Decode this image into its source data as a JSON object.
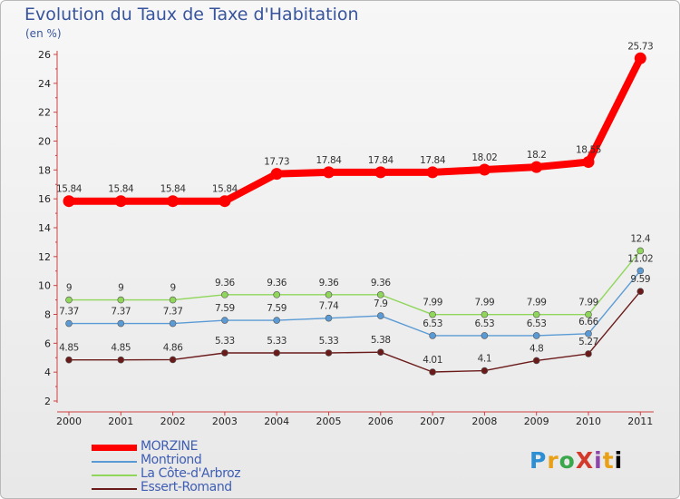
{
  "title": "Evolution du Taux de Taxe d'Habitation",
  "unit_label": "(en %)",
  "logo_text": "ProXiti",
  "chart_data": {
    "type": "line",
    "title": "Evolution du Taux de Taxe d'Habitation",
    "ylabel": "(en %)",
    "xlabel": "",
    "ylim": [
      2,
      26
    ],
    "yticks": [
      2,
      4,
      6,
      8,
      10,
      12,
      14,
      16,
      18,
      20,
      22,
      24,
      26
    ],
    "grid": false,
    "legend_position": "bottom-left",
    "categories": [
      "2000",
      "2001",
      "2002",
      "2003",
      "2004",
      "2005",
      "2006",
      "2007",
      "2008",
      "2009",
      "2010",
      "2011"
    ],
    "series": [
      {
        "name": "MORZINE",
        "color": "#ff0000",
        "values": [
          15.84,
          15.84,
          15.84,
          15.84,
          17.73,
          17.84,
          17.84,
          17.84,
          18.02,
          18.2,
          18.55,
          25.73
        ],
        "labels": [
          "15.84",
          "15.84",
          "15.84",
          "15.84",
          "17.73",
          "17.84",
          "17.84",
          "17.84",
          "18.02",
          "18.2",
          "18.55",
          "25.73"
        ]
      },
      {
        "name": "Montriond",
        "color": "#5b9bd5",
        "values": [
          7.37,
          7.37,
          7.37,
          7.59,
          7.59,
          7.74,
          7.9,
          6.53,
          6.53,
          6.53,
          6.66,
          11.02
        ],
        "labels": [
          "7.37",
          "7.37",
          "7.37",
          "7.59",
          "7.59",
          "7.74",
          "7.9",
          "6.53",
          "6.53",
          "6.53",
          "6.66",
          "11.02"
        ]
      },
      {
        "name": "La Côte-d'Arbroz",
        "color": "#8fd65a",
        "values": [
          9,
          9,
          9,
          9.36,
          9.36,
          9.36,
          9.36,
          7.99,
          7.99,
          7.99,
          7.99,
          12.4
        ],
        "labels": [
          "9",
          "9",
          "9",
          "9.36",
          "9.36",
          "9.36",
          "9.36",
          "7.99",
          "7.99",
          "7.99",
          "7.99",
          "12.4"
        ]
      },
      {
        "name": "Essert-Romand",
        "color": "#6b1a1a",
        "values": [
          4.85,
          4.85,
          4.86,
          5.33,
          5.33,
          5.33,
          5.38,
          4.01,
          4.1,
          4.8,
          5.27,
          9.59
        ],
        "labels": [
          "4.85",
          "4.85",
          "4.86",
          "5.33",
          "5.33",
          "5.33",
          "5.38",
          "4.01",
          "4.1",
          "4.8",
          "5.27",
          "9.59"
        ]
      }
    ]
  }
}
